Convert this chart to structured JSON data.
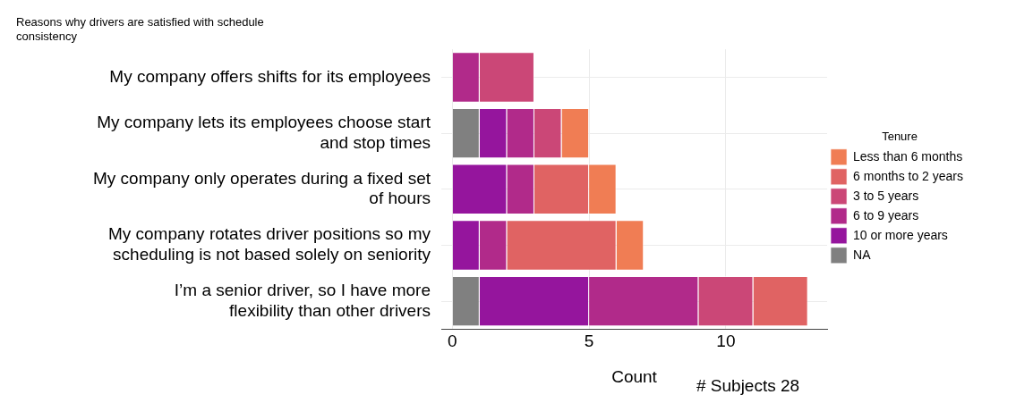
{
  "chart_data": {
    "type": "bar",
    "orientation": "horizontal",
    "stacked": true,
    "title": "Reasons why drivers are satisfied with schedule consistency",
    "xlabel": "Count",
    "legend_title": "Tenure",
    "legend": "right",
    "grid": true,
    "categories": [
      "My company offers shifts for its employees",
      "My company lets its employees choose start and stop times",
      "My company only operates during a fixed set of hours",
      "My company rotates driver positions so my scheduling is not based solely on seniority",
      "I’m a senior driver, so I have more flexibility than other drivers"
    ],
    "series": [
      {
        "name": "NA",
        "color": "#808080",
        "values": [
          null,
          1,
          null,
          null,
          1
        ]
      },
      {
        "name": "10 or more years",
        "color": "#95159d",
        "values": [
          null,
          1,
          2,
          1,
          4
        ]
      },
      {
        "name": "6 to 9 years",
        "color": "#b12a8a",
        "values": [
          1,
          1,
          1,
          1,
          4
        ]
      },
      {
        "name": "3 to 5 years",
        "color": "#cb4777",
        "values": [
          2,
          1,
          null,
          null,
          2
        ]
      },
      {
        "name": "6 months to 2 years",
        "color": "#e06363",
        "values": [
          null,
          null,
          2,
          4,
          2
        ]
      },
      {
        "name": "Less than 6 months",
        "color": "#f07d54",
        "values": [
          null,
          1,
          1,
          1,
          null
        ]
      }
    ],
    "xlim": [
      -0.4,
      13.7
    ],
    "xticks": [
      0,
      5,
      10
    ],
    "annotations": [
      "# Subjects 28"
    ]
  }
}
